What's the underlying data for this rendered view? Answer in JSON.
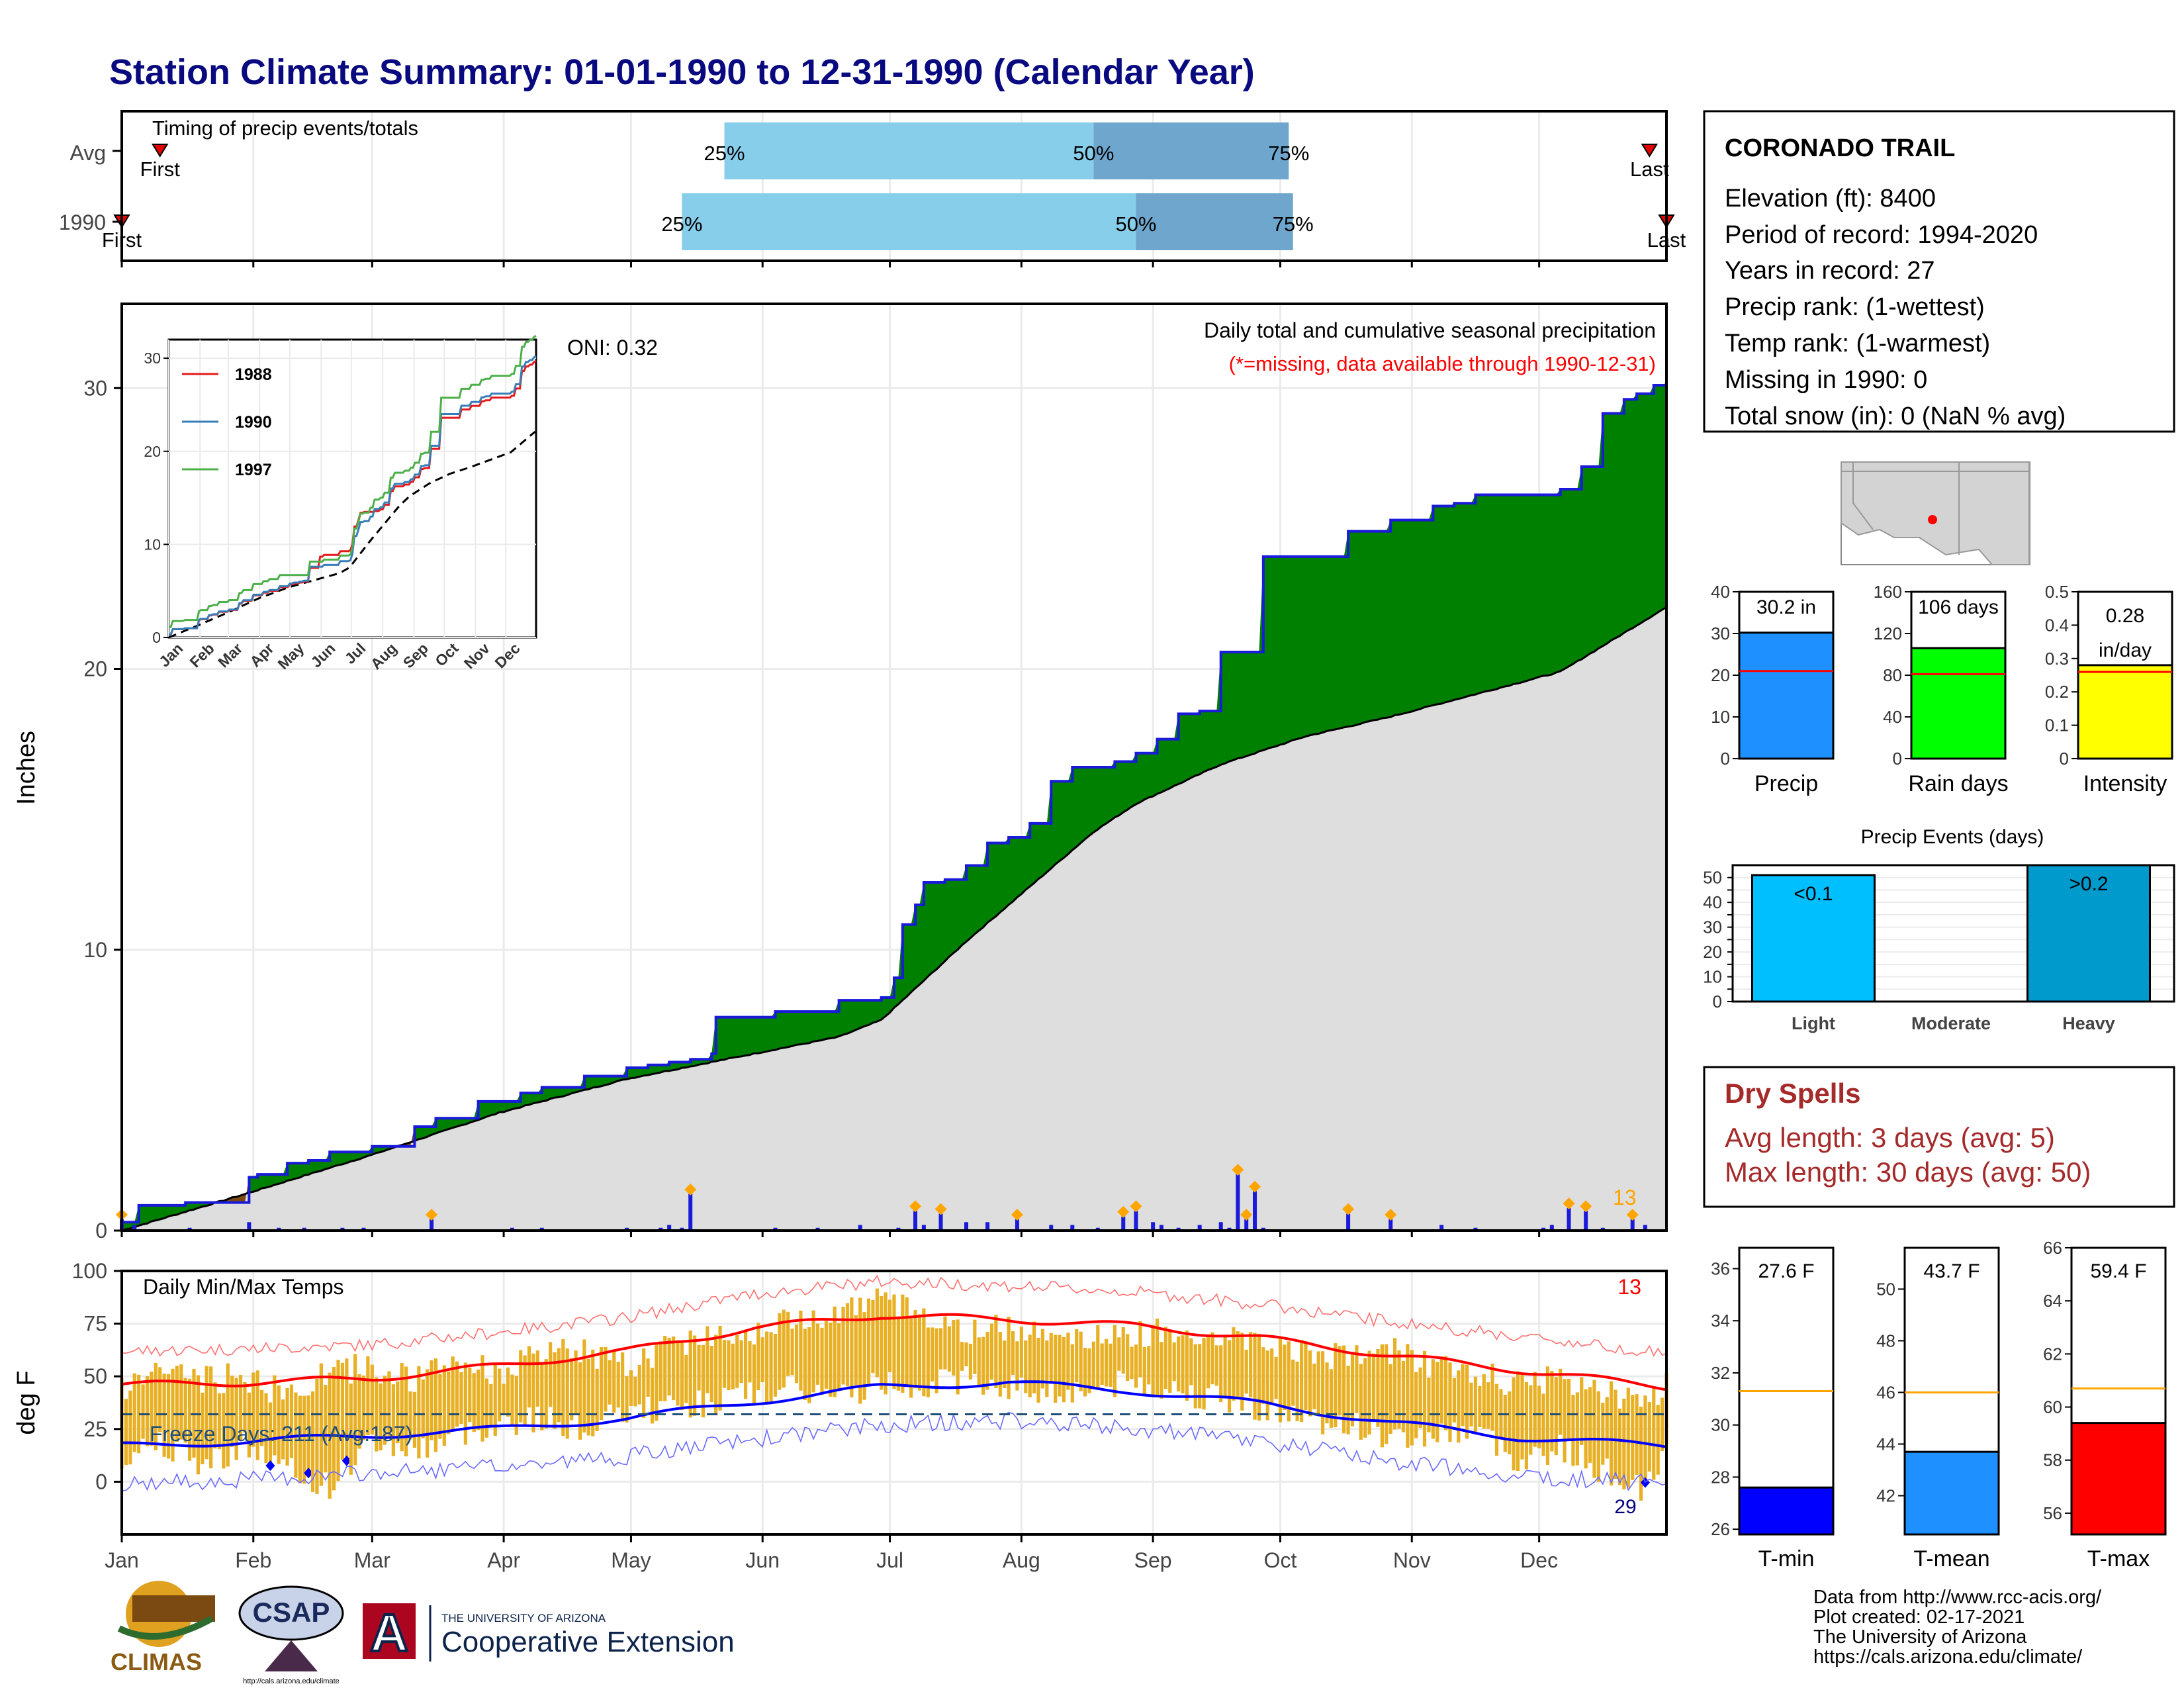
{
  "title": "Station Climate Summary: 01-01-1990 to 12-31-1990 (Calendar Year)",
  "months": [
    "Jan",
    "Feb",
    "Mar",
    "Apr",
    "May",
    "Jun",
    "Jul",
    "Aug",
    "Sep",
    "Oct",
    "Nov",
    "Dec"
  ],
  "timing": {
    "title": "Timing of precip events/totals",
    "rows": [
      {
        "label": "Avg",
        "first_doy": 10,
        "p25_doy": 143,
        "p50_doy": 230,
        "p75_doy": 276,
        "last_doy": 361,
        "first_label": "First",
        "last_label": "Last"
      },
      {
        "label": "1990",
        "first_doy": 1,
        "p25_doy": 133,
        "p50_doy": 240,
        "p75_doy": 277,
        "last_doy": 365,
        "first_label": "First",
        "last_label": "Last"
      }
    ],
    "pct_labels": [
      "25%",
      "50%",
      "75%"
    ]
  },
  "precip_panel": {
    "ylabel": "Inches",
    "ylim": [
      0,
      33
    ],
    "yticks": [
      0,
      10,
      20,
      30
    ],
    "oni_label": "ONI: 0.32",
    "subtitle": "Daily total and cumulative seasonal precipitation",
    "missing_note": "(*=missing, data available through 1990-12-31)",
    "count_label": "13",
    "colors": {
      "observed_line": "#1a1adb",
      "above_normal": "#008000",
      "below_normal": "#7a4a12",
      "normal_fill": "#dedede",
      "daily_bar": "#1a1adb",
      "extreme_marker": "#ffa500"
    }
  },
  "inset": {
    "yticks": [
      0,
      10,
      20,
      30
    ],
    "ylim": [
      0,
      32
    ],
    "legend": [
      {
        "name": "1988",
        "color": "#e41a1c"
      },
      {
        "name": "1990",
        "color": "#377eb8"
      },
      {
        "name": "1997",
        "color": "#4daf4a"
      }
    ]
  },
  "temp_panel": {
    "ylabel": "deg F",
    "title": "Daily Min/Max Temps",
    "ylim": [
      -25,
      100
    ],
    "yticks": [
      0,
      25,
      50,
      75,
      100
    ],
    "freeze_label": "Freeze Days: 211 (Avg:187)",
    "hot_count": "13",
    "cold_count": "29",
    "freeze_line": 32,
    "colors": {
      "bar": "#e8b025",
      "tmax_smooth": "#ff0000",
      "tmin_smooth": "#0000ff",
      "tmax_record": "#ff7070",
      "tmin_record": "#6a6aff",
      "freeze": "#1f4e79"
    }
  },
  "station": {
    "name": "CORONADO TRAIL",
    "lines": [
      "Elevation (ft): 8400",
      "Period of record: 1994-2020",
      "Years in record: 27",
      "Precip rank:  (1-wettest)",
      "Temp rank:  (1-warmest)",
      "Missing in 1990: 0",
      "Total snow (in): 0 (NaN % avg)"
    ]
  },
  "summary_bars": [
    {
      "label": "Precip",
      "value": 30.2,
      "value_label": "30.2 in",
      "avg": 21,
      "ylim": [
        0,
        40
      ],
      "yticks": [
        0,
        10,
        20,
        30,
        40
      ],
      "color": "#1e90ff"
    },
    {
      "label": "Rain days",
      "value": 106,
      "value_label": "106 days",
      "avg": 81,
      "ylim": [
        0,
        160
      ],
      "yticks": [
        0,
        40,
        80,
        120,
        160
      ],
      "color": "#00ff00"
    },
    {
      "label": "Intensity",
      "value": 0.28,
      "value_label": "0.28 in/day",
      "avg": 0.26,
      "ylim": [
        0,
        0.5
      ],
      "yticks": [
        0.0,
        0.1,
        0.2,
        0.3,
        0.4,
        0.5
      ],
      "color": "#ffff00"
    }
  ],
  "events": {
    "title": "Precip Events (days)",
    "ylim": [
      0,
      55
    ],
    "yticks": [
      0,
      5,
      10,
      15,
      20,
      25,
      30,
      35,
      40,
      45,
      50
    ],
    "bars": [
      {
        "label": "Light",
        "value": 51,
        "text": "<0.1",
        "color": "#00bfff"
      },
      {
        "label": "Moderate",
        "value": 0,
        "text": "",
        "color": "#1e90ff"
      },
      {
        "label": "Heavy",
        "value": 55,
        "text": ">0.2",
        "color": "#009acd"
      }
    ]
  },
  "dry_spells": {
    "title": "Dry Spells",
    "lines": [
      "Avg length: 3 days (avg: 5)",
      "Max length: 30 days (avg: 50)"
    ],
    "color": "#a52a2a"
  },
  "temp_bars": [
    {
      "label": "T-min",
      "value": 27.6,
      "value_label": "27.6 F",
      "avg": 31.3,
      "ylim": [
        25.8,
        36.8
      ],
      "yticks": [
        26,
        28,
        30,
        32,
        34,
        36
      ],
      "color": "#0000ff"
    },
    {
      "label": "T-mean",
      "value": 43.7,
      "value_label": "43.7 F",
      "avg": 46.0,
      "ylim": [
        40.5,
        51.6
      ],
      "yticks": [
        42,
        44,
        46,
        48,
        50
      ],
      "color": "#1e90ff"
    },
    {
      "label": "T-max",
      "value": 59.4,
      "value_label": "59.4 F",
      "avg": 60.7,
      "ylim": [
        55.2,
        66.0
      ],
      "yticks": [
        56,
        58,
        60,
        62,
        64,
        66
      ],
      "color": "#ff0000"
    }
  ],
  "footer": {
    "lines": [
      "Data from http://www.rcc-acis.org/",
      "Plot created: 02-17-2021",
      "The University of Arizona",
      "https://cals.arizona.edu/climate/"
    ],
    "logo_climas": "CLIMAS",
    "logo_csap": "CSAP",
    "logo_csap_url": "http://cals.arizona.edu/climate",
    "ua_small": "THE UNIVERSITY OF ARIZONA",
    "ua_big": "Cooperative Extension",
    "ua_letter": "A"
  },
  "chart_data": {
    "type": "area",
    "title": "Station Climate Summary: 01-01-1990 to 12-31-1990 (Calendar Year)",
    "xlabel": "",
    "ylabel": "Inches",
    "ylim": [
      0,
      33
    ],
    "series": [
      {
        "name": "observed",
        "x": [
          1,
          5,
          16,
          21,
          31,
          33,
          40,
          45,
          50,
          60,
          70,
          75,
          85,
          95,
          100,
          110,
          120,
          125,
          130,
          135,
          140,
          141,
          150,
          155,
          170,
          175,
          180,
          183,
          185,
          188,
          190,
          195,
          200,
          205,
          210,
          215,
          220,
          225,
          235,
          240,
          245,
          250,
          255,
          260,
          270,
          273,
          275,
          285,
          290,
          300,
          310,
          315,
          320,
          330,
          340,
          345,
          350,
          355,
          358,
          362,
          365
        ],
        "y": [
          0.3,
          0.9,
          1.0,
          1.0,
          1.9,
          2.0,
          2.4,
          2.5,
          2.8,
          3.0,
          3.7,
          4.0,
          4.6,
          4.9,
          5.1,
          5.5,
          5.8,
          5.9,
          6.0,
          6.1,
          6.3,
          7.6,
          7.6,
          7.8,
          8.2,
          8.2,
          8.3,
          9.0,
          10.9,
          11.6,
          12.4,
          12.5,
          13.0,
          13.8,
          14.0,
          14.5,
          16.0,
          16.5,
          16.7,
          17.0,
          17.5,
          18.4,
          18.5,
          20.6,
          24.0,
          24.0,
          24.0,
          24.0,
          24.9,
          25.3,
          25.8,
          25.9,
          26.2,
          26.2,
          26.4,
          27.2,
          29.1,
          29.6,
          29.8,
          30.1,
          30.2
        ]
      },
      {
        "name": "normal",
        "x": [
          1,
          30,
          60,
          90,
          120,
          150,
          160,
          170,
          180,
          190,
          200,
          210,
          220,
          230,
          240,
          250,
          260,
          270,
          280,
          300,
          320,
          340,
          365
        ],
        "y": [
          0.0,
          1.3,
          2.7,
          4.2,
          5.4,
          6.3,
          6.6,
          6.9,
          7.5,
          8.9,
          10.3,
          11.6,
          12.9,
          14.2,
          15.2,
          15.9,
          16.6,
          17.1,
          17.6,
          18.3,
          19.1,
          19.9,
          22.2
        ]
      },
      {
        "name": "daily",
        "x": [
          1,
          4,
          17,
          31,
          38,
          44,
          53,
          58,
          74,
          93,
          100,
          120,
          128,
          130,
          133,
          135,
          155,
          165,
          175,
          184,
          188,
          190,
          194,
          200,
          205,
          212,
          220,
          225,
          231,
          237,
          240,
          244,
          246,
          250,
          255,
          260,
          262,
          264,
          266,
          268,
          270,
          290,
          300,
          312,
          320,
          336,
          338,
          342,
          346,
          350,
          357,
          360
        ],
        "y": [
          0.4,
          0.2,
          0.1,
          0.3,
          0.1,
          0.1,
          0.1,
          0.1,
          0.4,
          0.1,
          0.1,
          0.1,
          0.1,
          0.2,
          0.1,
          1.3,
          0.1,
          0.1,
          0.2,
          0.1,
          0.7,
          0.2,
          0.6,
          0.3,
          0.3,
          0.4,
          0.2,
          0.2,
          0.1,
          0.5,
          0.7,
          0.3,
          0.2,
          0.1,
          0.2,
          0.3,
          0.1,
          2.0,
          0.4,
          1.4,
          0.1,
          0.6,
          0.4,
          0.2,
          0.1,
          0.1,
          0.2,
          0.8,
          0.7,
          0.1,
          0.4,
          0.2
        ]
      }
    ],
    "temps": {
      "ylim": [
        -25,
        100
      ],
      "tmax_normal": {
        "x": [
          1,
          30,
          60,
          90,
          120,
          150,
          180,
          210,
          240,
          270,
          300,
          330,
          365
        ],
        "y": [
          46,
          47,
          49,
          55,
          62,
          73,
          79,
          77,
          74,
          68,
          60,
          53,
          45
        ]
      },
      "tmin_normal": {
        "x": [
          1,
          30,
          60,
          90,
          120,
          150,
          180,
          210,
          240,
          270,
          300,
          330,
          365
        ],
        "y": [
          17,
          19,
          22,
          25,
          30,
          38,
          45,
          47,
          43,
          37,
          28,
          21,
          17
        ]
      },
      "tmax_daily": {
        "x": [
          1,
          10,
          20,
          30,
          40,
          50,
          60,
          70,
          80,
          90,
          100,
          110,
          120,
          130,
          140,
          150,
          160,
          170,
          180,
          190,
          200,
          210,
          220,
          230,
          240,
          250,
          260,
          270,
          280,
          290,
          300,
          310,
          320,
          330,
          340,
          350,
          360,
          365
        ],
        "y": [
          43,
          55,
          48,
          50,
          41,
          52,
          55,
          48,
          57,
          52,
          60,
          63,
          54,
          65,
          70,
          72,
          77,
          82,
          86,
          80,
          70,
          74,
          72,
          68,
          70,
          73,
          69,
          66,
          63,
          58,
          62,
          55,
          52,
          46,
          50,
          44,
          38,
          47
        ]
      },
      "tmin_daily": {
        "x": [
          1,
          10,
          20,
          30,
          40,
          50,
          60,
          70,
          80,
          90,
          100,
          110,
          120,
          130,
          140,
          150,
          160,
          170,
          180,
          190,
          200,
          210,
          220,
          230,
          240,
          250,
          260,
          270,
          280,
          290,
          300,
          310,
          320,
          330,
          340,
          350,
          360,
          365
        ],
        "y": [
          12,
          20,
          8,
          18,
          5,
          -2,
          20,
          15,
          22,
          28,
          30,
          25,
          33,
          35,
          38,
          42,
          44,
          40,
          47,
          46,
          49,
          45,
          42,
          44,
          47,
          43,
          39,
          35,
          30,
          28,
          20,
          22,
          25,
          10,
          16,
          5,
          -3,
          15
        ]
      }
    }
  }
}
